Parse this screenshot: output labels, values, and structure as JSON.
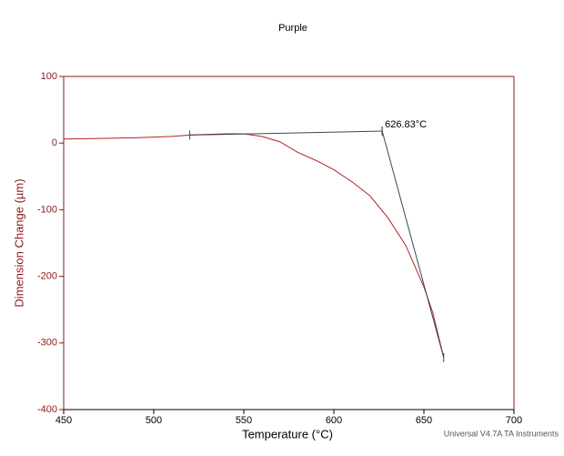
{
  "chart_data": {
    "type": "line",
    "title": "Purple",
    "x_label": "Temperature (°C)",
    "y_label": "Dimension Change (µm)",
    "footer": "Universal V4.7A TA Instruments",
    "xlim": [
      450,
      700
    ],
    "xticks": [
      450,
      500,
      550,
      600,
      650,
      700
    ],
    "ylim": [
      -400,
      100
    ],
    "yticks": [
      -400,
      -300,
      -200,
      -100,
      0,
      100
    ],
    "axis_color": "#8b1a1a",
    "series": [
      {
        "name": "Dimension Change",
        "color": "#b22222",
        "x": [
          450,
          470,
          490,
          510,
          520,
          530,
          540,
          550,
          560,
          570,
          580,
          590,
          600,
          610,
          620,
          630,
          640,
          650,
          655,
          661
        ],
        "values": [
          6,
          7,
          8,
          10,
          12,
          13,
          14,
          14,
          10,
          2,
          -14,
          -26,
          -40,
          -58,
          -79,
          -112,
          -154,
          -216,
          -255,
          -322
        ]
      }
    ],
    "tangent_lines": {
      "color": "#3a4656",
      "lines": [
        {
          "x": [
            520,
            626.83
          ],
          "values": [
            12,
            18
          ]
        },
        {
          "x": [
            626.83,
            661
          ],
          "values": [
            18,
            -322
          ]
        }
      ]
    },
    "annotation": {
      "text": "626.83°C",
      "x": 626.83,
      "y": 18
    }
  }
}
